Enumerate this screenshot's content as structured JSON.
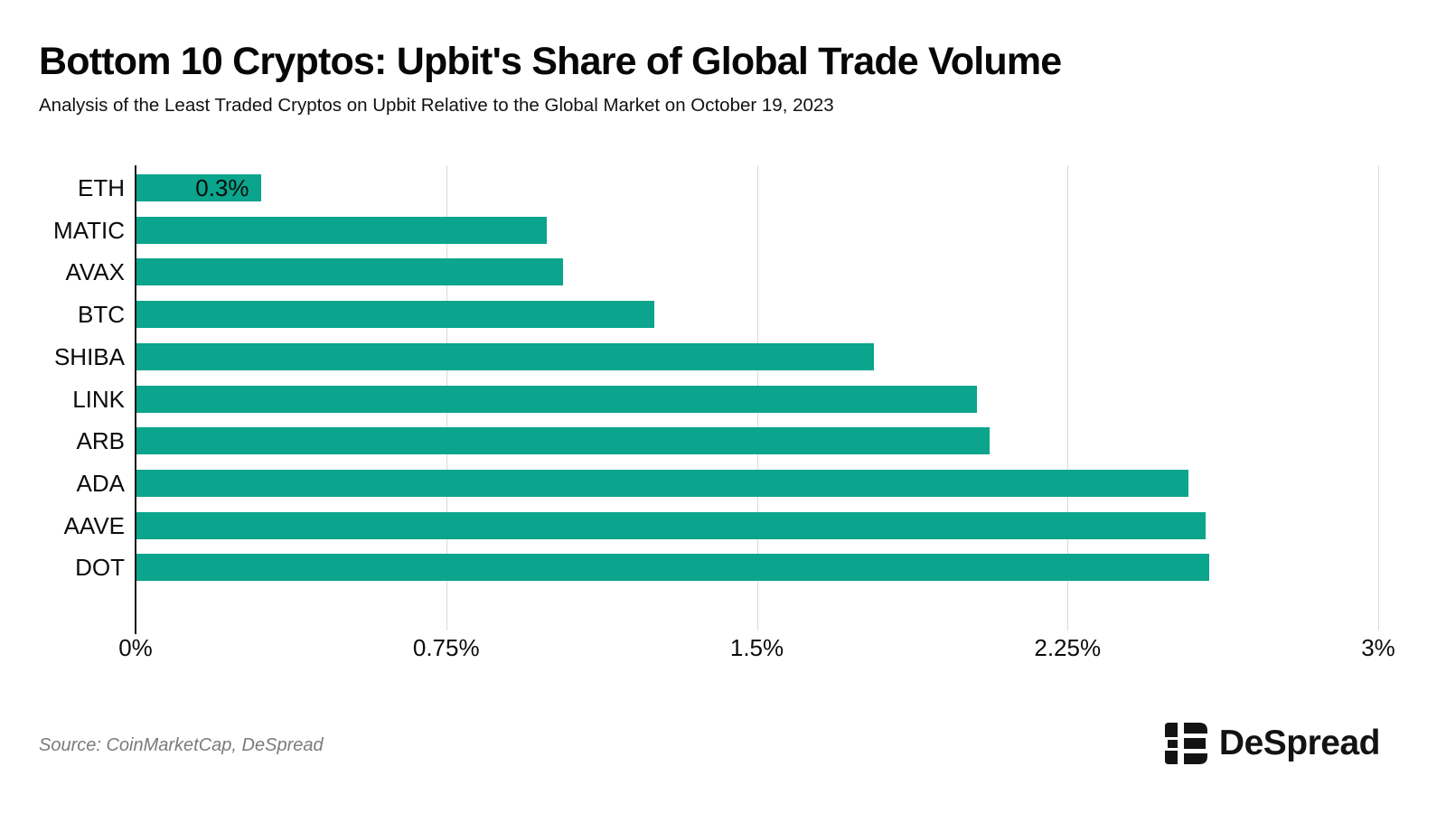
{
  "header": {
    "title": "Bottom 10 Cryptos: Upbit's Share of Global Trade Volume",
    "subtitle": "Analysis of the Least Traded Cryptos on Upbit Relative to the Global Market on October 19, 2023"
  },
  "chart_data": {
    "type": "bar",
    "orientation": "horizontal",
    "title": "Bottom 10 Cryptos: Upbit's Share of Global Trade Volume",
    "categories": [
      "ETH",
      "MATIC",
      "AVAX",
      "BTC",
      "SHIBA",
      "LINK",
      "ARB",
      "ADA",
      "AAVE",
      "DOT"
    ],
    "values": [
      0.3,
      0.99,
      1.03,
      1.25,
      1.78,
      2.03,
      2.06,
      2.54,
      2.58,
      2.59
    ],
    "unit": "%",
    "data_labels": [
      "0.3%",
      null,
      null,
      null,
      null,
      null,
      null,
      null,
      null,
      null
    ],
    "xlabel": "",
    "ylabel": "",
    "xlim": [
      0,
      3
    ],
    "x_ticks": [
      0,
      0.75,
      1.5,
      2.25,
      3
    ],
    "x_tick_labels": [
      "0%",
      "0.75%",
      "1.5%",
      "2.25%",
      "3%"
    ],
    "grid": "vertical-gridlines-on",
    "legend": "none",
    "bar_color": "#0AA58C"
  },
  "colors": {
    "background": "#ffffff",
    "bar": "#0AA58C",
    "gridline": "#d9d9d9",
    "axis": "#161616",
    "text": "#0b0b0b",
    "muted": "#7b7b7b"
  },
  "footer": {
    "source": "Source: CoinMarketCap, DeSpread",
    "brand": "DeSpread"
  }
}
